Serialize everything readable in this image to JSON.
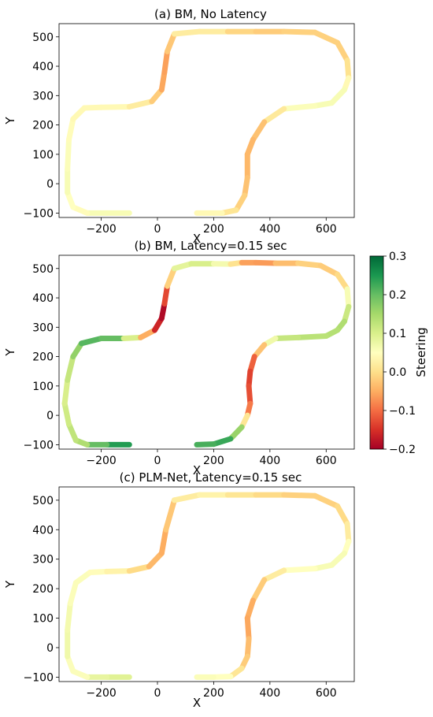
{
  "chart_data": [
    {
      "type": "line",
      "title": "(a) BM, No Latency",
      "xlabel": "X",
      "ylabel": "Y",
      "xlim": [
        -350,
        700
      ],
      "ylim": [
        -115,
        545
      ],
      "xticks": [
        -200,
        0,
        200,
        400,
        600
      ],
      "yticks": [
        -100,
        0,
        100,
        200,
        300,
        400,
        500
      ],
      "series": [
        {
          "x": [
            -100,
            -180,
            -250,
            -300,
            -320,
            -320,
            -315,
            -300,
            -260,
            -200,
            -100,
            -20,
            15,
            25,
            35,
            60,
            150,
            250,
            350,
            450,
            560,
            640,
            675,
            680,
            665,
            620,
            560,
            450,
            380,
            340,
            320,
            320,
            310,
            280,
            230,
            140
          ],
          "y": [
            -100,
            -100,
            -100,
            -80,
            -30,
            50,
            150,
            220,
            258,
            260,
            262,
            280,
            320,
            380,
            450,
            510,
            518,
            518,
            518,
            518,
            515,
            480,
            420,
            360,
            320,
            275,
            265,
            255,
            210,
            150,
            100,
            20,
            -40,
            -90,
            -100,
            -100
          ],
          "steering": [
            0.05,
            0.07,
            0.05,
            0.04,
            0.06,
            0.06,
            0.05,
            0.04,
            0.04,
            0.04,
            0.04,
            0.0,
            -0.04,
            -0.07,
            -0.05,
            0.0,
            0.04,
            0.0,
            -0.02,
            -0.02,
            -0.01,
            -0.02,
            -0.01,
            0.02,
            0.06,
            0.06,
            0.06,
            0.05,
            -0.02,
            -0.04,
            -0.04,
            -0.04,
            -0.02,
            -0.01,
            0.03,
            0.05
          ]
        }
      ]
    },
    {
      "type": "line",
      "title": "(b) BM, Latency=0.15 sec",
      "xlabel": "X",
      "ylabel": "Y",
      "xlim": [
        -350,
        700
      ],
      "ylim": [
        -115,
        545
      ],
      "xticks": [
        -200,
        0,
        200,
        400,
        600
      ],
      "yticks": [
        -100,
        0,
        100,
        200,
        300,
        400,
        500
      ],
      "series": [
        {
          "x": [
            -100,
            -180,
            -250,
            -290,
            -315,
            -330,
            -320,
            -300,
            -270,
            -200,
            -120,
            -60,
            -10,
            15,
            25,
            35,
            60,
            120,
            200,
            260,
            300,
            350,
            420,
            500,
            580,
            640,
            675,
            680,
            665,
            640,
            600,
            500,
            420,
            380,
            345,
            330,
            325,
            330,
            320,
            300,
            260,
            200,
            140
          ],
          "y": [
            -100,
            -100,
            -100,
            -85,
            -30,
            40,
            120,
            200,
            245,
            262,
            262,
            265,
            290,
            330,
            380,
            440,
            500,
            516,
            516,
            515,
            520,
            520,
            518,
            518,
            510,
            480,
            430,
            370,
            320,
            290,
            270,
            265,
            262,
            240,
            200,
            150,
            100,
            40,
            0,
            -40,
            -80,
            -98,
            -100
          ],
          "steering": [
            0.25,
            0.24,
            0.16,
            0.12,
            0.13,
            0.09,
            0.11,
            0.13,
            0.2,
            0.22,
            0.18,
            0.02,
            -0.12,
            -0.2,
            -0.18,
            -0.08,
            0.05,
            0.12,
            0.08,
            0.05,
            -0.04,
            -0.08,
            -0.05,
            -0.02,
            -0.01,
            -0.03,
            0.02,
            0.1,
            0.13,
            0.15,
            0.12,
            0.14,
            0.1,
            0.04,
            -0.1,
            -0.12,
            -0.15,
            -0.1,
            -0.08,
            0.1,
            0.22,
            0.24,
            0.2
          ]
        }
      ]
    },
    {
      "type": "line",
      "title": "(c) PLM-Net, Latency=0.15 sec",
      "xlabel": "X",
      "ylabel": "Y",
      "xlim": [
        -350,
        700
      ],
      "ylim": [
        -115,
        545
      ],
      "xticks": [
        -200,
        0,
        200,
        400,
        600
      ],
      "yticks": [
        -100,
        0,
        100,
        200,
        300,
        400,
        500
      ],
      "series": [
        {
          "x": [
            -100,
            -180,
            -250,
            -300,
            -320,
            -320,
            -310,
            -290,
            -240,
            -180,
            -100,
            -30,
            15,
            30,
            60,
            150,
            250,
            350,
            450,
            560,
            640,
            675,
            680,
            665,
            620,
            560,
            450,
            380,
            340,
            320,
            325,
            320,
            300,
            260,
            200,
            140
          ],
          "y": [
            -100,
            -100,
            -100,
            -80,
            -30,
            60,
            150,
            220,
            255,
            258,
            260,
            275,
            320,
            400,
            500,
            518,
            518,
            518,
            518,
            515,
            480,
            420,
            360,
            320,
            280,
            268,
            262,
            230,
            160,
            100,
            30,
            -30,
            -70,
            -98,
            -100,
            -100
          ],
          "steering": [
            0.08,
            0.1,
            0.06,
            0.05,
            0.06,
            0.08,
            0.05,
            0.06,
            0.05,
            0.04,
            0.02,
            -0.03,
            -0.05,
            -0.05,
            0.0,
            0.04,
            0.02,
            0.0,
            -0.01,
            -0.02,
            -0.01,
            0.0,
            0.04,
            0.06,
            0.06,
            0.06,
            0.04,
            0.0,
            -0.04,
            -0.06,
            -0.05,
            -0.02,
            -0.02,
            0.04,
            0.06,
            0.05
          ]
        }
      ]
    }
  ],
  "colorbar": {
    "label": "Steering",
    "min": -0.2,
    "max": 0.3,
    "ticks": [
      0.3,
      0.2,
      0.1,
      0.0,
      -0.1,
      -0.2
    ],
    "tick_labels": [
      "0.3",
      "0.2",
      "0.1",
      "0.0",
      "−0.1",
      "−0.2"
    ],
    "colormap": [
      "#a50026",
      "#d73027",
      "#f46d43",
      "#fdae61",
      "#fee08b",
      "#ffffbf",
      "#d9ef8b",
      "#a6d96a",
      "#66bd63",
      "#1a9850",
      "#006837"
    ]
  }
}
